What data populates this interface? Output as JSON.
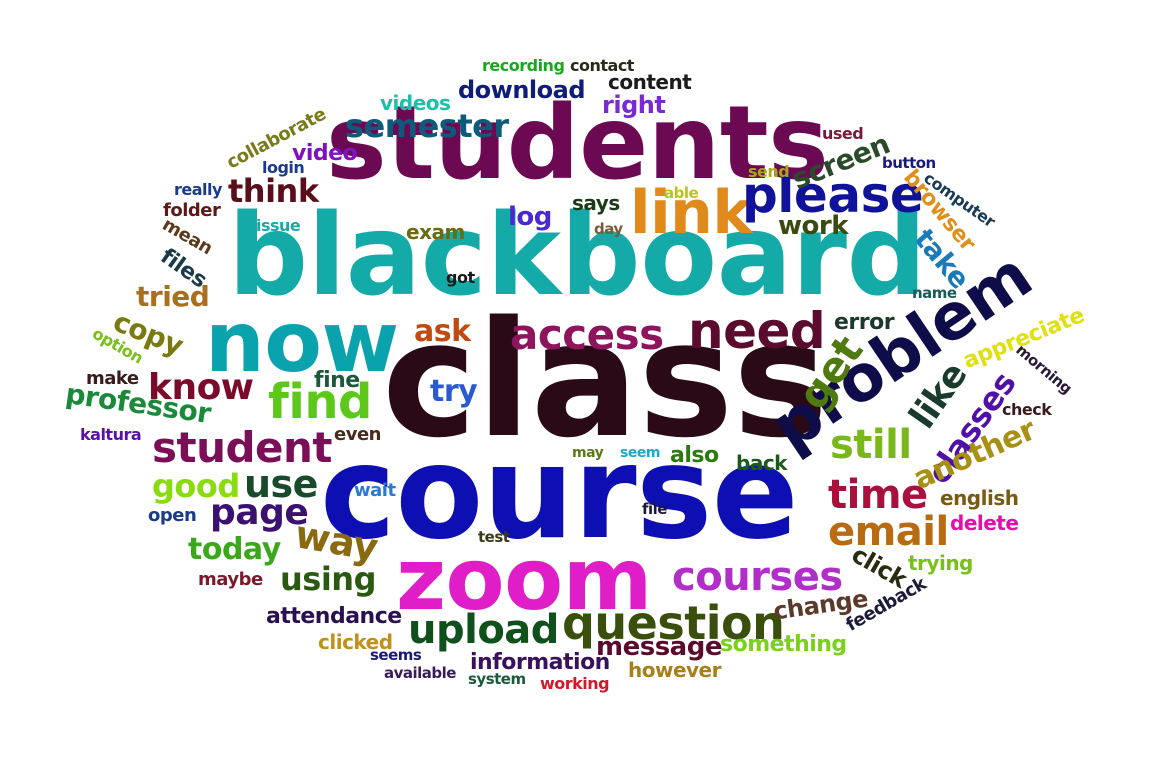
{
  "words": [
    {
      "text": "class",
      "color": "#2b0a18"
    },
    {
      "text": "course",
      "color": "#0e0fb3"
    },
    {
      "text": "blackboard",
      "color": "#13aaa8"
    },
    {
      "text": "students",
      "color": "#6b0a52"
    },
    {
      "text": "zoom",
      "color": "#e01ec8"
    },
    {
      "text": "now",
      "color": "#0aa3ad"
    },
    {
      "text": "problem",
      "color": "#0e0d4a"
    },
    {
      "text": "link",
      "color": "#e08a1c"
    },
    {
      "text": "please",
      "color": "#10129a"
    },
    {
      "text": "need",
      "color": "#5a0b2e"
    },
    {
      "text": "access",
      "color": "#8e145e"
    },
    {
      "text": "find",
      "color": "#5ec81a"
    },
    {
      "text": "question",
      "color": "#3a4f0c"
    },
    {
      "text": "courses",
      "color": "#b22ec9"
    },
    {
      "text": "upload",
      "color": "#10501c"
    },
    {
      "text": "student",
      "color": "#7a0e57"
    },
    {
      "text": "semester",
      "color": "#0e5a7a"
    },
    {
      "text": "time",
      "color": "#a8103e"
    },
    {
      "text": "email",
      "color": "#b86b10"
    },
    {
      "text": "still",
      "color": "#7ab81a"
    },
    {
      "text": "get",
      "color": "#4e7a10"
    },
    {
      "text": "like",
      "color": "#1a3a2c"
    },
    {
      "text": "classes",
      "color": "#5010a8"
    },
    {
      "text": "know",
      "color": "#7a0a2a"
    },
    {
      "text": "page",
      "color": "#3a1070"
    },
    {
      "text": "use",
      "color": "#1a4a2c"
    },
    {
      "text": "way",
      "color": "#8a6a10"
    },
    {
      "text": "good",
      "color": "#8adc10"
    },
    {
      "text": "think",
      "color": "#5a0e1c"
    },
    {
      "text": "using",
      "color": "#2a5a10"
    },
    {
      "text": "today",
      "color": "#3aa81a"
    },
    {
      "text": "professor",
      "color": "#1a8a3a"
    },
    {
      "text": "another",
      "color": "#a89010"
    },
    {
      "text": "message",
      "color": "#5a0a2a"
    },
    {
      "text": "copy",
      "color": "#7a7a10"
    },
    {
      "text": "tried",
      "color": "#a8701c"
    },
    {
      "text": "download",
      "color": "#0e1c7a"
    },
    {
      "text": "ask",
      "color": "#c04a10"
    },
    {
      "text": "try",
      "color": "#2a5ad0"
    },
    {
      "text": "screen",
      "color": "#2a4a2a"
    },
    {
      "text": "take",
      "color": "#1a7ab8"
    },
    {
      "text": "change",
      "color": "#5a3a2a"
    },
    {
      "text": "information",
      "color": "#3a105a"
    },
    {
      "text": "content",
      "color": "#1c1c1c"
    },
    {
      "text": "right",
      "color": "#7a2ad0"
    },
    {
      "text": "videos",
      "color": "#1ac0a8"
    },
    {
      "text": "video",
      "color": "#8010c0"
    },
    {
      "text": "log",
      "color": "#4a2ad0"
    },
    {
      "text": "work",
      "color": "#3a4a10"
    },
    {
      "text": "browser",
      "color": "#e0901a"
    },
    {
      "text": "appreciate",
      "color": "#e0e010"
    },
    {
      "text": "error",
      "color": "#1a3a2a"
    },
    {
      "text": "fine",
      "color": "#1a5a3a"
    },
    {
      "text": "files",
      "color": "#1a3a4a"
    },
    {
      "text": "click",
      "color": "#2a2a10"
    },
    {
      "text": "attendance",
      "color": "#2a1050"
    },
    {
      "text": "something",
      "color": "#7ad01a"
    },
    {
      "text": "however",
      "color": "#a8801a"
    },
    {
      "text": "english",
      "color": "#7a5a10"
    },
    {
      "text": "also",
      "color": "#2a7a10"
    },
    {
      "text": "back",
      "color": "#1a5a1a"
    },
    {
      "text": "exam",
      "color": "#6a6a10"
    },
    {
      "text": "says",
      "color": "#1a3a1a"
    },
    {
      "text": "trying",
      "color": "#7ac01a"
    },
    {
      "text": "delete",
      "color": "#e010a8"
    },
    {
      "text": "feedback",
      "color": "#1a1a3a"
    },
    {
      "text": "clicked",
      "color": "#c0901a"
    },
    {
      "text": "maybe",
      "color": "#7a1a2a"
    },
    {
      "text": "open",
      "color": "#1a3a8a"
    },
    {
      "text": "wait",
      "color": "#2a7ad0"
    },
    {
      "text": "even",
      "color": "#4a2a1a"
    },
    {
      "text": "kaltura",
      "color": "#5a10a8"
    },
    {
      "text": "make",
      "color": "#3a1a1a"
    },
    {
      "text": "option",
      "color": "#7ac01a"
    },
    {
      "text": "mean",
      "color": "#5a3a1a"
    },
    {
      "text": "folder",
      "color": "#5a1a1a"
    },
    {
      "text": "really",
      "color": "#1a3a8a"
    },
    {
      "text": "login",
      "color": "#1a3a8a"
    },
    {
      "text": "collaborate",
      "color": "#7a7a1a"
    },
    {
      "text": "issue",
      "color": "#1aa8a8"
    },
    {
      "text": "recording",
      "color": "#1aa81a"
    },
    {
      "text": "contact",
      "color": "#2a2a1a"
    },
    {
      "text": "used",
      "color": "#7a1a3a"
    },
    {
      "text": "button",
      "color": "#1a1a7a"
    },
    {
      "text": "send",
      "color": "#a8a81a"
    },
    {
      "text": "able",
      "color": "#c0c01a"
    },
    {
      "text": "day",
      "color": "#7a5a3a"
    },
    {
      "text": "computer",
      "color": "#1a3a5a"
    },
    {
      "text": "got",
      "color": "#1a1a1a"
    },
    {
      "text": "name",
      "color": "#1a5a5a"
    },
    {
      "text": "morning",
      "color": "#2a1a3a"
    },
    {
      "text": "check",
      "color": "#3a1a1a"
    },
    {
      "text": "may",
      "color": "#5a7a1a"
    },
    {
      "text": "seem",
      "color": "#1aa8d0"
    },
    {
      "text": "file",
      "color": "#1a1a3a"
    },
    {
      "text": "test",
      "color": "#3a3a1a"
    },
    {
      "text": "seems",
      "color": "#1a1a7a"
    },
    {
      "text": "available",
      "color": "#3a1a5a"
    },
    {
      "text": "system",
      "color": "#1a5a3a"
    },
    {
      "text": "working",
      "color": "#d01a2a"
    }
  ]
}
